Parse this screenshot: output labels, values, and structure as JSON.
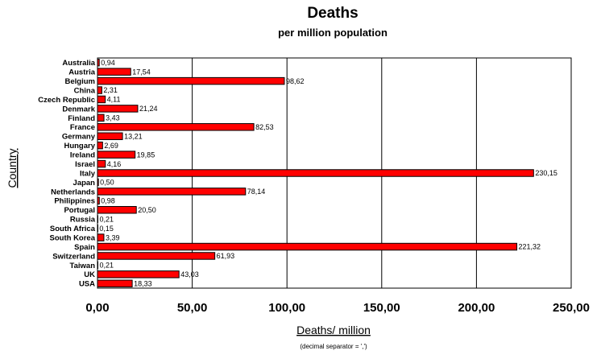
{
  "chart_data": {
    "type": "bar",
    "orientation": "horizontal",
    "title": "Deaths",
    "subtitle": "per million population",
    "ylabel": "Country",
    "xlabel": "Deaths/ million",
    "note": "(decimal separator = ',')",
    "xlim": [
      0,
      250
    ],
    "xticks": [
      "0,00",
      "50,00",
      "100,00",
      "150,00",
      "200,00",
      "250,00"
    ],
    "grid": "vertical",
    "bar_color": "#ff0000",
    "categories": [
      "Australia",
      "Austria",
      "Belgium",
      "China",
      "Czech Republic",
      "Denmark",
      "Finland",
      "France",
      "Germany",
      "Hungary",
      "Ireland",
      "Israel",
      "Italy",
      "Japan",
      "Netherlands",
      "Philippines",
      "Portugal",
      "Russia",
      "South Africa",
      "South Korea",
      "Spain",
      "Switzerland",
      "Taiwan",
      "UK",
      "USA"
    ],
    "values": [
      0.94,
      17.54,
      98.62,
      2.31,
      4.11,
      21.24,
      3.43,
      82.53,
      13.21,
      2.69,
      19.85,
      4.16,
      230.15,
      0.5,
      78.14,
      0.98,
      20.5,
      0.21,
      0.15,
      3.39,
      221.32,
      61.93,
      0.21,
      43.03,
      18.33
    ],
    "value_labels": [
      "0,94",
      "17,54",
      "98,62",
      "2,31",
      "4,11",
      "21,24",
      "3,43",
      "82,53",
      "13,21",
      "2,69",
      "19,85",
      "4,16",
      "230,15",
      "0,50",
      "78,14",
      "0,98",
      "20,50",
      "0,21",
      "0,15",
      "3,39",
      "221,32",
      "61,93",
      "0,21",
      "43,03",
      "18,33"
    ]
  }
}
